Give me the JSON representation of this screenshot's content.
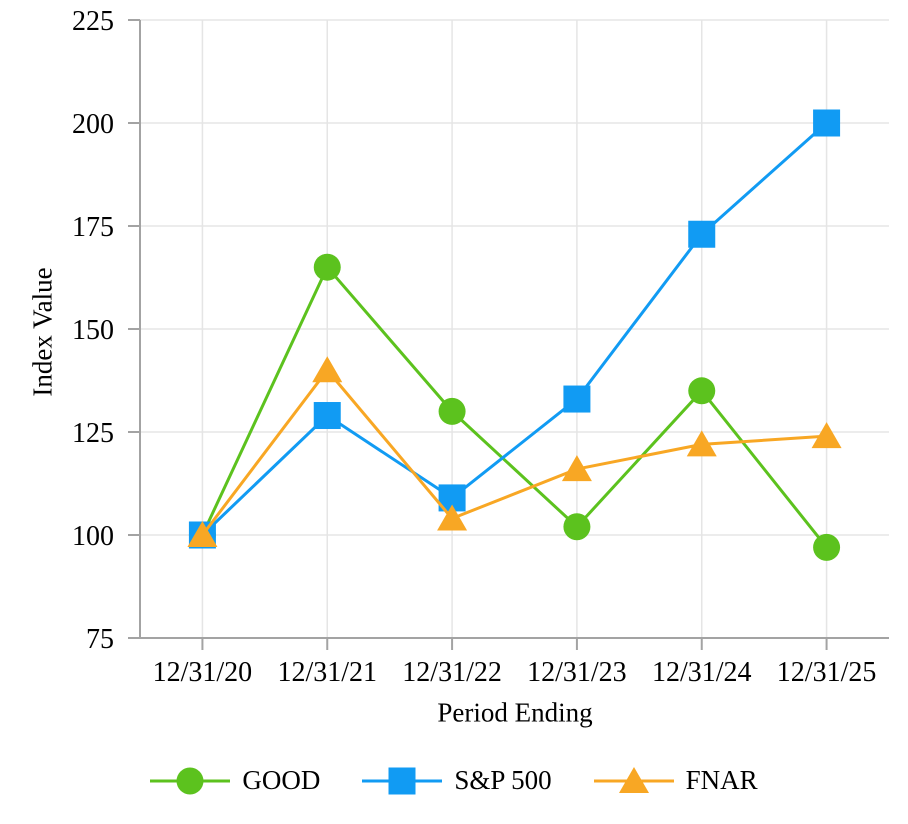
{
  "chart_data": {
    "type": "line",
    "title": "",
    "xlabel": "Period Ending",
    "ylabel": "Index Value",
    "categories": [
      "12/31/20",
      "12/31/21",
      "12/31/22",
      "12/31/23",
      "12/31/24",
      "12/31/25"
    ],
    "series": [
      {
        "name": "GOOD",
        "marker": "circle",
        "color": "#5CC21E",
        "values": [
          100,
          165,
          130,
          102,
          135,
          97
        ]
      },
      {
        "name": "S&P 500",
        "marker": "square",
        "color": "#119BF3",
        "values": [
          100,
          129,
          109,
          133,
          173,
          200
        ]
      },
      {
        "name": "FNAR",
        "marker": "triangle",
        "color": "#F8A724",
        "values": [
          100,
          140,
          104,
          116,
          122,
          124
        ]
      }
    ],
    "ylim": [
      75,
      225
    ],
    "y_ticks": [
      75,
      100,
      125,
      150,
      175,
      200,
      225
    ],
    "grid": true,
    "legend_position": "bottom",
    "grid_color": "#E5E5E5",
    "axis_color": "#A3A3A3",
    "text_color": "#000000",
    "background": "#FFFFFF"
  }
}
